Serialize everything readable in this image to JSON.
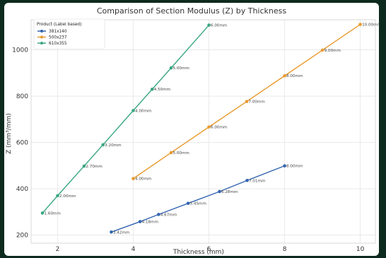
{
  "chart_data": {
    "type": "line",
    "title": "Comparison of Section Modulus (Z) by Thickness",
    "xlabel": "Thickness (mm)",
    "ylabel": "Z (mm³/mm)",
    "xlim": [
      1.3,
      10.4
    ],
    "ylim": [
      165,
      1130
    ],
    "xticks": [
      2,
      4,
      6,
      8,
      10
    ],
    "yticks": [
      200,
      400,
      600,
      800,
      1000
    ],
    "grid": true,
    "legend": {
      "title": "Product (Label based)",
      "placement": "top-left"
    },
    "series": [
      {
        "name": "381x140",
        "color": "#3465b0",
        "points": [
          {
            "x": 3.42,
            "y": 213,
            "label": "3.42mm"
          },
          {
            "x": 4.18,
            "y": 258,
            "label": "4.18mm"
          },
          {
            "x": 4.67,
            "y": 289,
            "label": "4.67mm"
          },
          {
            "x": 5.45,
            "y": 337,
            "label": "5.45mm"
          },
          {
            "x": 6.28,
            "y": 388,
            "label": "6.28mm"
          },
          {
            "x": 7.01,
            "y": 436,
            "label": "7.01mm"
          },
          {
            "x": 8.0,
            "y": 499,
            "label": "8.00mm"
          }
        ]
      },
      {
        "name": "500x237",
        "color": "#e89a2e",
        "points": [
          {
            "x": 4.0,
            "y": 444,
            "label": "4.00mm"
          },
          {
            "x": 5.0,
            "y": 556,
            "label": "5.00mm"
          },
          {
            "x": 6.0,
            "y": 667,
            "label": "6.00mm"
          },
          {
            "x": 7.0,
            "y": 777,
            "label": "7.00mm"
          },
          {
            "x": 8.0,
            "y": 888,
            "label": "8.00mm"
          },
          {
            "x": 9.0,
            "y": 999,
            "label": "9.00mm"
          },
          {
            "x": 10.0,
            "y": 1110,
            "label": "10.00mm"
          }
        ]
      },
      {
        "name": "610x355",
        "color": "#3aa683",
        "points": [
          {
            "x": 1.6,
            "y": 295,
            "label": "1.60mm"
          },
          {
            "x": 2.0,
            "y": 370,
            "label": "2.00mm"
          },
          {
            "x": 2.7,
            "y": 498,
            "label": "2.70mm"
          },
          {
            "x": 3.2,
            "y": 590,
            "label": "3.20mm"
          },
          {
            "x": 4.0,
            "y": 738,
            "label": "4.00mm"
          },
          {
            "x": 4.5,
            "y": 830,
            "label": "4.50mm"
          },
          {
            "x": 5.0,
            "y": 922,
            "label": "5.00mm"
          },
          {
            "x": 6.0,
            "y": 1107,
            "label": "6.00mm"
          }
        ]
      }
    ]
  }
}
